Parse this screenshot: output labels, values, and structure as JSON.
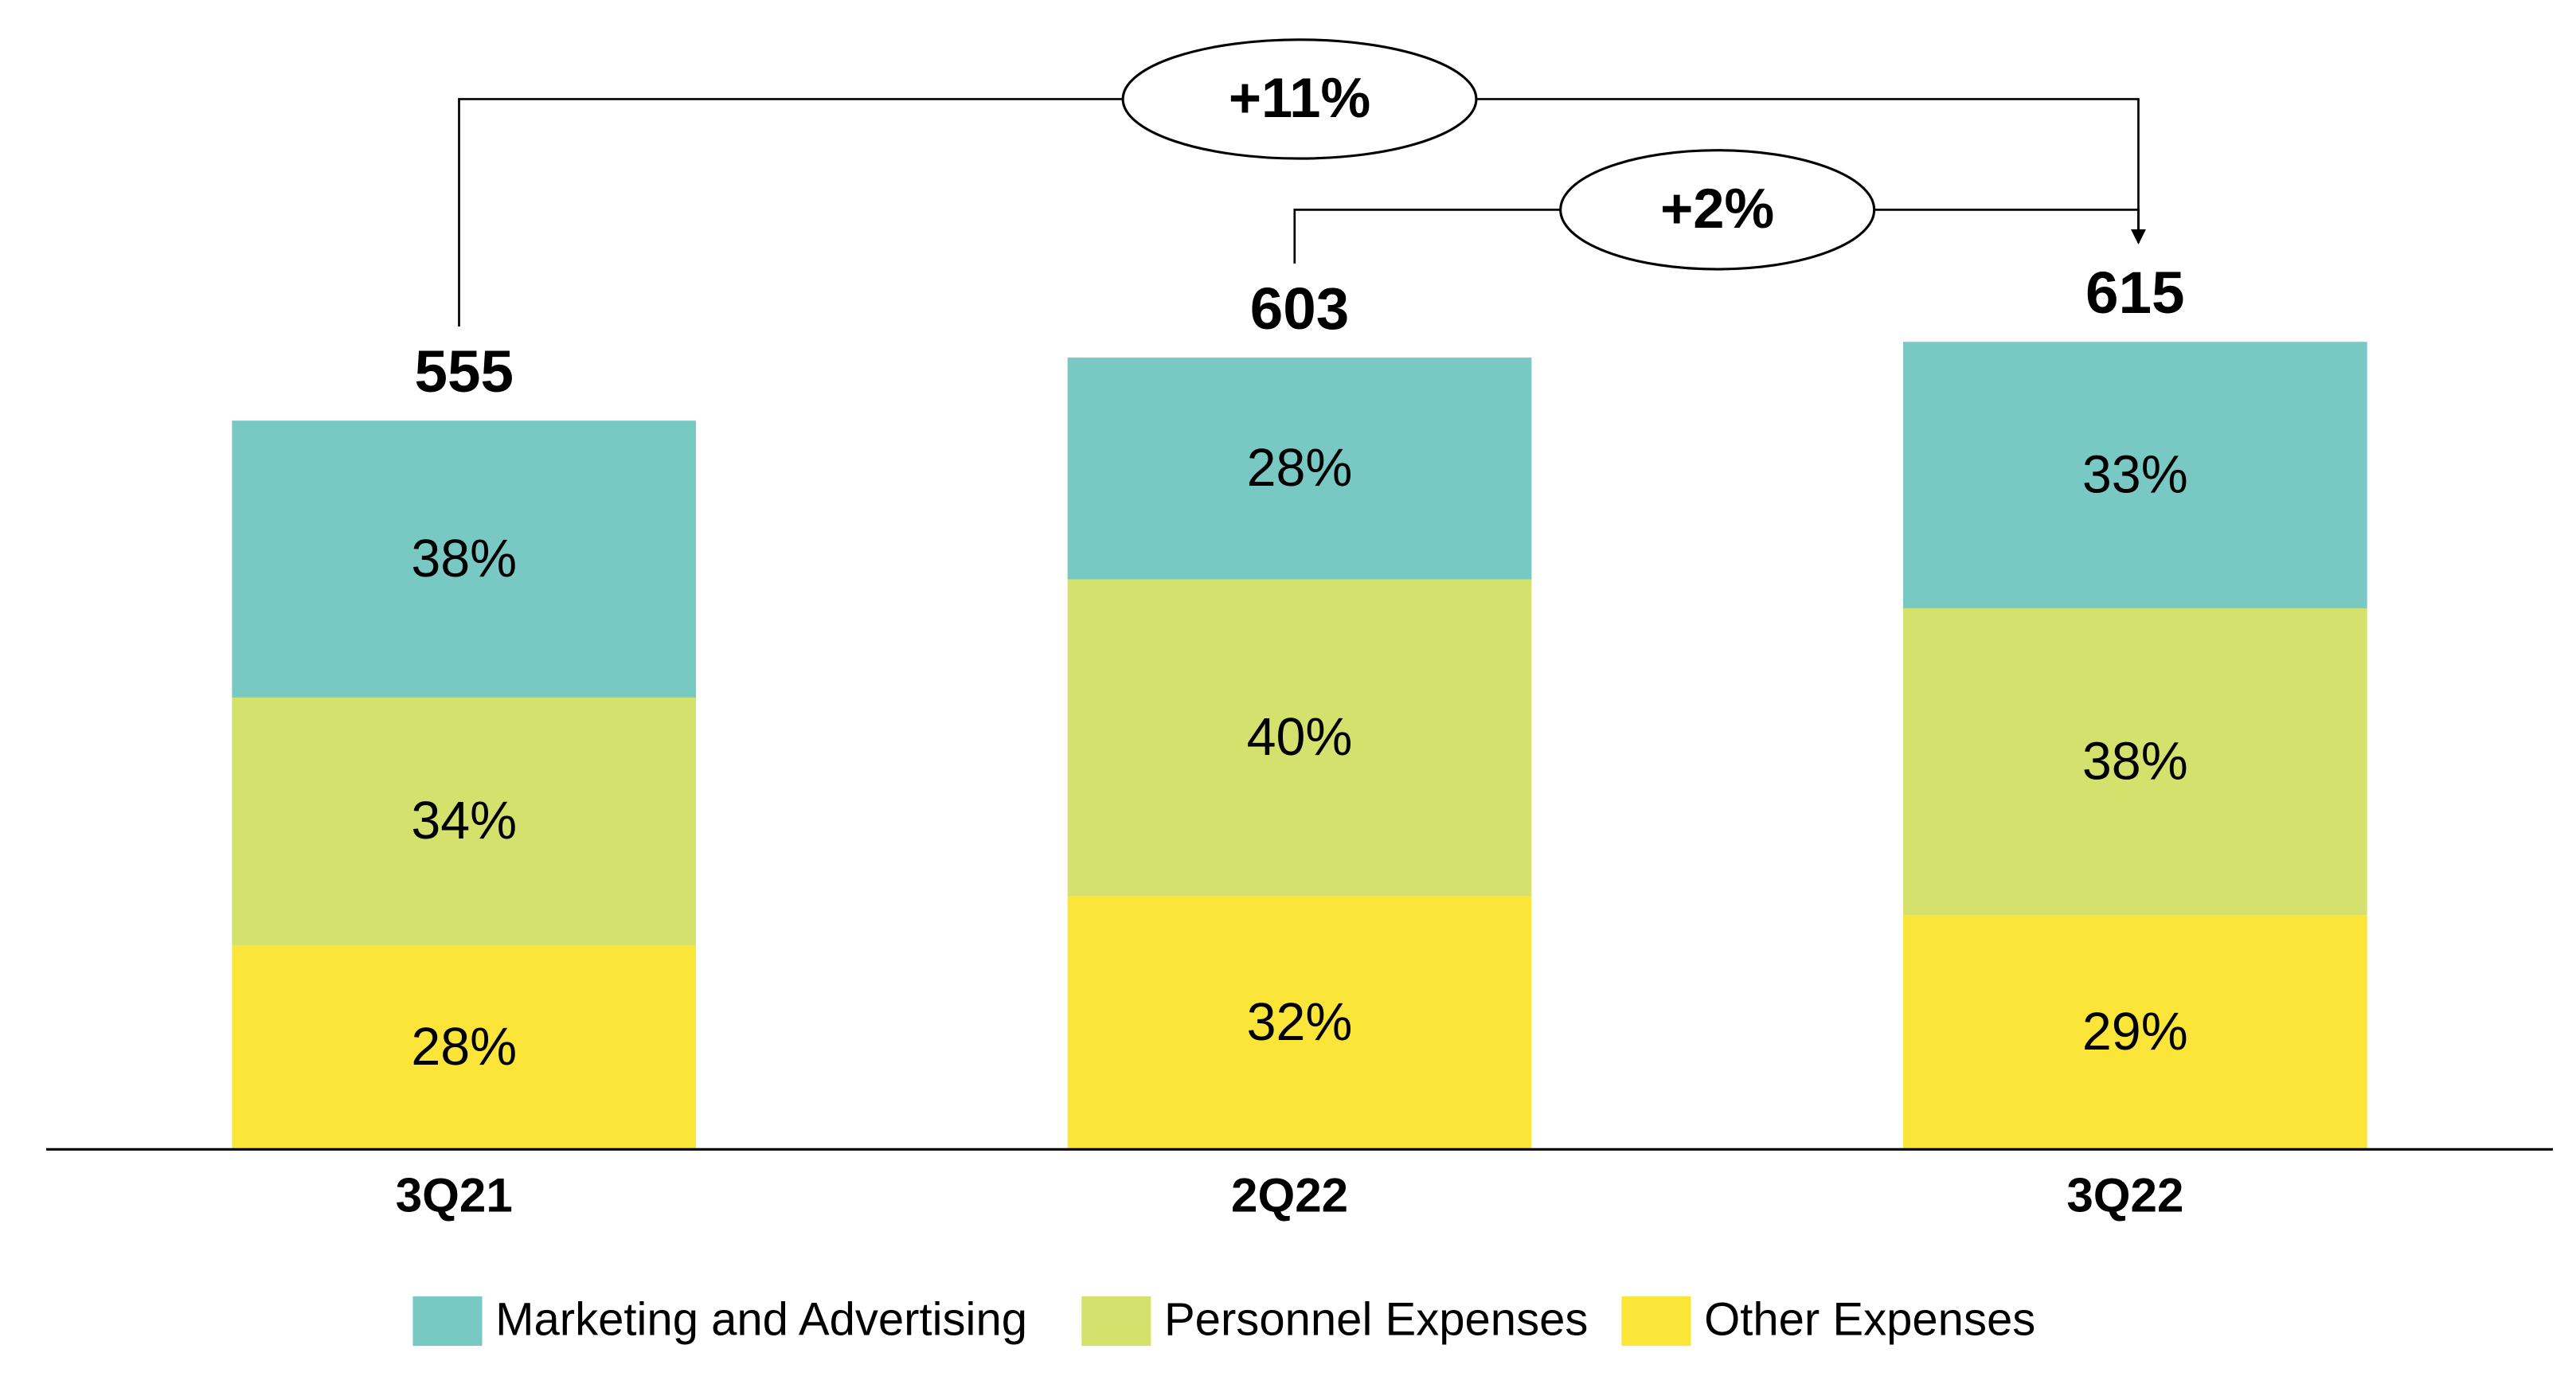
{
  "chart_data": {
    "type": "stacked_percent_bar",
    "categories": [
      "3Q21",
      "2Q22",
      "3Q22"
    ],
    "totals": [
      555,
      603,
      615
    ],
    "series": [
      {
        "name": "Marketing and Advertising",
        "color": "#78c8c3",
        "values": [
          38,
          28,
          33
        ],
        "value_labels": [
          "38%",
          "28%",
          "33%"
        ]
      },
      {
        "name": "Personnel Expenses",
        "color": "#d4e16c",
        "values": [
          34,
          40,
          38
        ],
        "value_labels": [
          "34%",
          "40%",
          "38%"
        ]
      },
      {
        "name": "Other Expenses",
        "color": "#fbe539",
        "values": [
          28,
          32,
          29
        ],
        "value_labels": [
          "28%",
          "32%",
          "29%"
        ]
      }
    ],
    "annotations": [
      {
        "text": "+11%",
        "from": 0,
        "to": 2
      },
      {
        "text": "+2%",
        "from": 1,
        "to": 2
      }
    ],
    "legend": "bottom"
  }
}
